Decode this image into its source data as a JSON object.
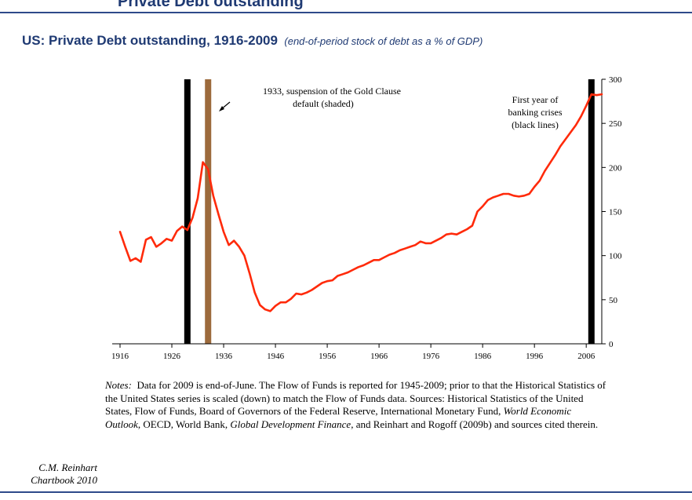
{
  "page": {
    "header_title": "Private Debt outstanding",
    "title_main": "US: Private Debt outstanding, 1916-2009",
    "title_sub": "(end-of-period stock of debt as a % of GDP)",
    "notes": {
      "label": "Notes:",
      "text_1": "Data for 2009 is end-of-June. The Flow of Funds is reported for 1945-2009; prior to that the Historical Statistics of the United States series is scaled (down) to match the Flow of Funds data. Sources: Historical Statistics of the United States, Flow of Funds, Board of Governors of the Federal Reserve, International Monetary Fund, ",
      "weo": "World Economic Outlook",
      "text_2": ", OECD, World Bank, ",
      "gdf": "Global Development Finance,",
      "text_3": " and Reinhart and Rogoff (2009b) and sources cited therein."
    },
    "credit_line1": "C.M. Reinhart",
    "credit_line2": "Chartbook 2010",
    "colors": {
      "accent": "#1f3a73",
      "line": "#ff2a0a",
      "gold_clause": "#9c6a3c",
      "crisis": "#000000"
    }
  },
  "chart_data": {
    "type": "line",
    "title": "US: Private Debt outstanding, 1916-2009",
    "subtitle": "(end-of-period stock of debt as a % of GDP)",
    "xlim": [
      1916,
      2009
    ],
    "ylim": [
      0,
      300
    ],
    "x_ticks": [
      1916,
      1926,
      1936,
      1946,
      1956,
      1966,
      1976,
      1986,
      1996,
      2006
    ],
    "y_ticks": [
      0,
      50,
      100,
      150,
      200,
      250,
      300
    ],
    "y_axis_side": "right",
    "grid": false,
    "crisis_years": [
      1929,
      2007
    ],
    "gold_clause_year": 1933,
    "annotations": {
      "gold_clause_line1": "1933, suspension of the Gold Clause",
      "gold_clause_line2": "default (shaded)",
      "crisis_line1": "First year of",
      "crisis_line2": "banking crises",
      "crisis_line3": "(black lines)"
    },
    "series": [
      {
        "x": [
          1916,
          1917,
          1918,
          1919,
          1920,
          1921,
          1922,
          1923,
          1924,
          1925,
          1926,
          1927,
          1928,
          1929,
          1930,
          1931,
          1932,
          1933,
          1934,
          1935,
          1936,
          1937,
          1938,
          1939,
          1940,
          1941,
          1942,
          1943,
          1944,
          1945,
          1946,
          1947,
          1948,
          1949,
          1950,
          1951,
          1952,
          1953,
          1954,
          1955,
          1956,
          1957,
          1958,
          1959,
          1960,
          1961,
          1962,
          1963,
          1964,
          1965,
          1966,
          1967,
          1968,
          1969,
          1970,
          1971,
          1972,
          1973,
          1974,
          1975,
          1976,
          1977,
          1978,
          1979,
          1980,
          1981,
          1982,
          1983,
          1984,
          1985,
          1986,
          1987,
          1988,
          1989,
          1990,
          1991,
          1992,
          1993,
          1994,
          1995,
          1996,
          1997,
          1998,
          1999,
          2000,
          2001,
          2002,
          2003,
          2004,
          2005,
          2006,
          2007,
          2008,
          2009
        ],
        "values": [
          127,
          110,
          94,
          97,
          93,
          118,
          121,
          110,
          114,
          119,
          117,
          128,
          133,
          129,
          143,
          165,
          206,
          198,
          168,
          147,
          127,
          112,
          117,
          110,
          100,
          80,
          58,
          44,
          39,
          37,
          43,
          47,
          47,
          51,
          57,
          56,
          58,
          61,
          65,
          69,
          71,
          72,
          77,
          79,
          81,
          84,
          87,
          89,
          92,
          95,
          95,
          98,
          101,
          103,
          106,
          108,
          110,
          112,
          116,
          114,
          114,
          117,
          120,
          124,
          125,
          124,
          127,
          130,
          134,
          150,
          156,
          163,
          166,
          168,
          170,
          170,
          168,
          167,
          168,
          170,
          178,
          185,
          196,
          205,
          214,
          224,
          232,
          240,
          248,
          258,
          270,
          283,
          282,
          283
        ]
      }
    ]
  }
}
